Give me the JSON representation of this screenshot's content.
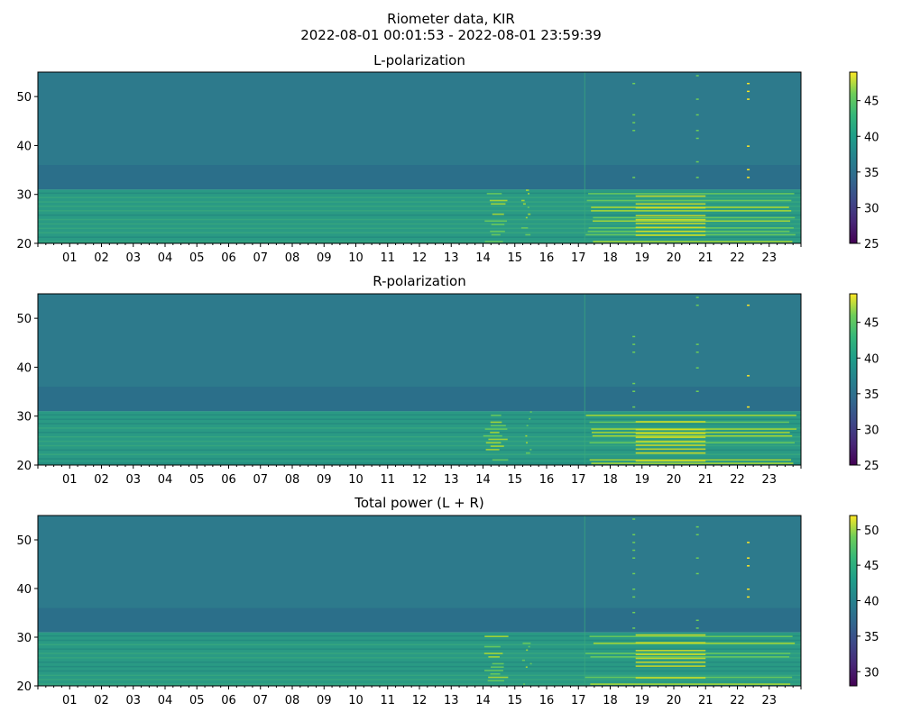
{
  "figure": {
    "title_line1": "Riometer data, KIR",
    "title_line2": "2022-08-01 00:01:53 - 2022-08-01 23:59:39"
  },
  "chart_data": [
    {
      "type": "heatmap",
      "title": "L-polarization",
      "y_ticks": [
        20,
        30,
        40,
        50
      ],
      "y_range": [
        20,
        55
      ],
      "x_ticks": [
        "01",
        "02",
        "03",
        "04",
        "05",
        "06",
        "07",
        "08",
        "09",
        "10",
        "11",
        "12",
        "13",
        "14",
        "15",
        "16",
        "17",
        "18",
        "19",
        "20",
        "21",
        "22",
        "23"
      ],
      "x_range_hours": [
        0,
        24
      ],
      "colorbar": {
        "ticks": [
          25,
          30,
          35,
          40,
          45
        ],
        "range": [
          25,
          49
        ],
        "colormap": "viridis"
      }
    },
    {
      "type": "heatmap",
      "title": "R-polarization",
      "y_ticks": [
        20,
        30,
        40,
        50
      ],
      "y_range": [
        20,
        55
      ],
      "x_ticks": [
        "01",
        "02",
        "03",
        "04",
        "05",
        "06",
        "07",
        "08",
        "09",
        "10",
        "11",
        "12",
        "13",
        "14",
        "15",
        "16",
        "17",
        "18",
        "19",
        "20",
        "21",
        "22",
        "23"
      ],
      "x_range_hours": [
        0,
        24
      ],
      "colorbar": {
        "ticks": [
          25,
          30,
          35,
          40,
          45
        ],
        "range": [
          25,
          49
        ],
        "colormap": "viridis"
      }
    },
    {
      "type": "heatmap",
      "title": "Total power (L + R)",
      "y_ticks": [
        20,
        30,
        40,
        50
      ],
      "y_range": [
        20,
        55
      ],
      "x_ticks": [
        "01",
        "02",
        "03",
        "04",
        "05",
        "06",
        "07",
        "08",
        "09",
        "10",
        "11",
        "12",
        "13",
        "14",
        "15",
        "16",
        "17",
        "18",
        "19",
        "20",
        "21",
        "22",
        "23"
      ],
      "x_range_hours": [
        0,
        24
      ],
      "colorbar": {
        "ticks": [
          30,
          35,
          40,
          45,
          50
        ],
        "range": [
          28,
          52
        ],
        "colormap": "viridis"
      }
    }
  ]
}
